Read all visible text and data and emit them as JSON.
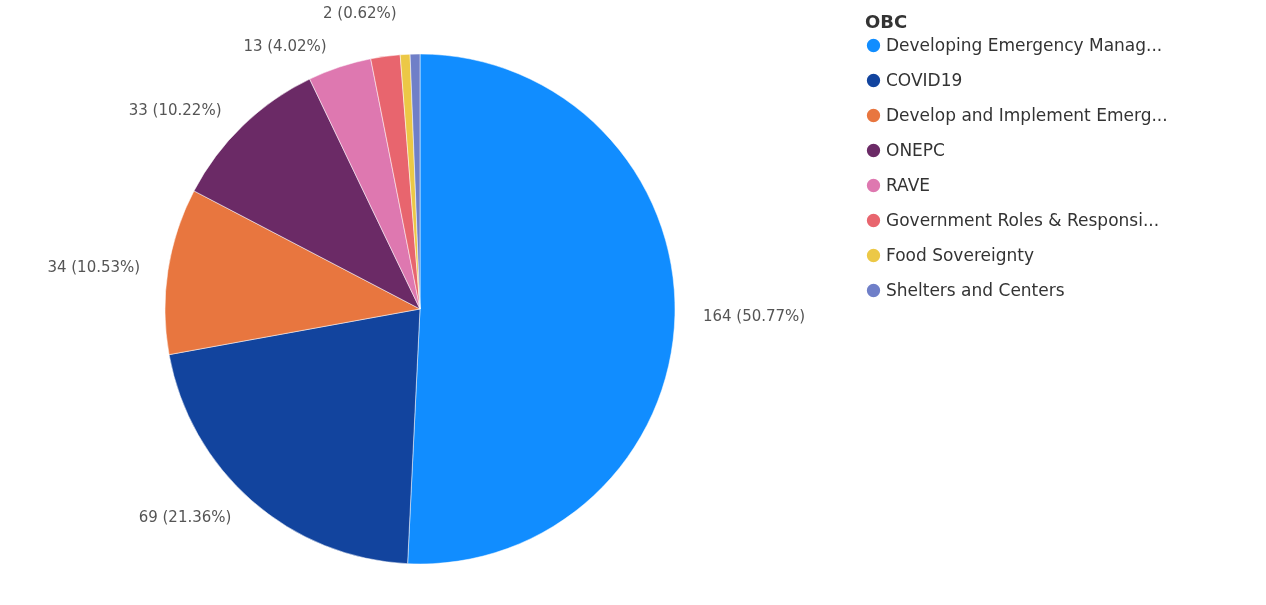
{
  "chart_data": {
    "type": "pie",
    "legend_title": "OBC",
    "categories": [
      "Developing Emergency Manag...",
      "COVID19",
      "Develop and Implement Emerg...",
      "ONEPC",
      "RAVE",
      "Government Roles & Responsi...",
      "Food Sovereignty",
      "Shelters and Centers"
    ],
    "values": [
      164,
      69,
      34,
      33,
      13,
      6,
      2,
      2
    ],
    "colors": [
      "#118dff",
      "#12449e",
      "#e8763f",
      "#6b2a66",
      "#de78b0",
      "#e8656e",
      "#ecc846",
      "#6f7fc8"
    ],
    "value_labels": [
      "164 (50.77%)",
      "69 (21.36%)",
      "34 (10.53%)",
      "33 (10.22%)",
      "13 (4.02%)",
      null,
      "2 (0.62%)",
      null
    ],
    "legend": "right"
  }
}
